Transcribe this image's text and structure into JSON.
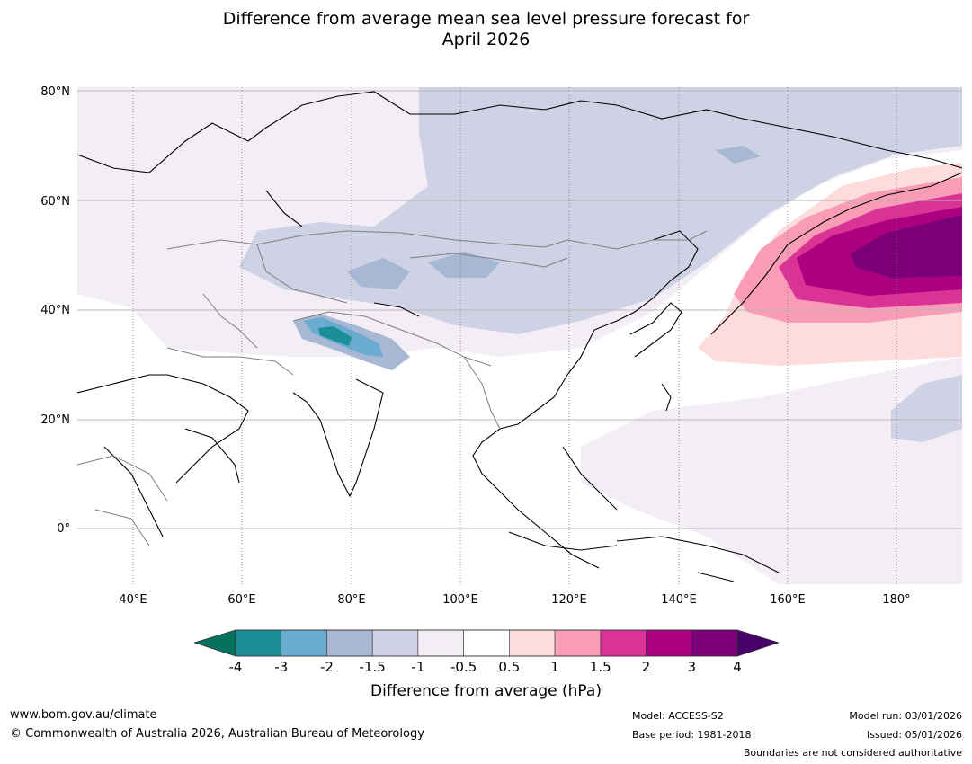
{
  "title_line1": "Difference from average mean sea level pressure forecast for",
  "title_line2": "April 2026",
  "lat_labels": [
    "80°N",
    "60°N",
    "40°N",
    "20°N",
    "0°"
  ],
  "lon_labels": [
    "40°E",
    "60°E",
    "80°E",
    "100°E",
    "120°E",
    "140°E",
    "160°E",
    "180°"
  ],
  "colorbar": {
    "label": "Difference from average (hPa)",
    "ticks": [
      "-4",
      "-3",
      "-2",
      "-1.5",
      "-1",
      "-0.5",
      "0.5",
      "1",
      "1.5",
      "2",
      "3",
      "4"
    ],
    "colors": {
      "below_min": "#04705e",
      "bins": [
        "#1a8f98",
        "#69abd1",
        "#a7b8d4",
        "#cfd1e5",
        "#f3edf5",
        "#ffffff",
        "#ffdcdc",
        "#f89cb8",
        "#da3396",
        "#ab007f",
        "#7b0077"
      ],
      "above_max": "#4a006a"
    }
  },
  "footer": {
    "website": "www.bom.gov.au/climate",
    "copyright": "© Commonwealth of Australia 2026, Australian Bureau of Meteorology",
    "model": "Model: ACCESS-S2",
    "base_period": "Base period: 1981-2018",
    "model_run": "Model run: 03/01/2026",
    "issued": "Issued: 05/01/2026",
    "disclaimer": "Boundaries are not considered authoritative"
  }
}
